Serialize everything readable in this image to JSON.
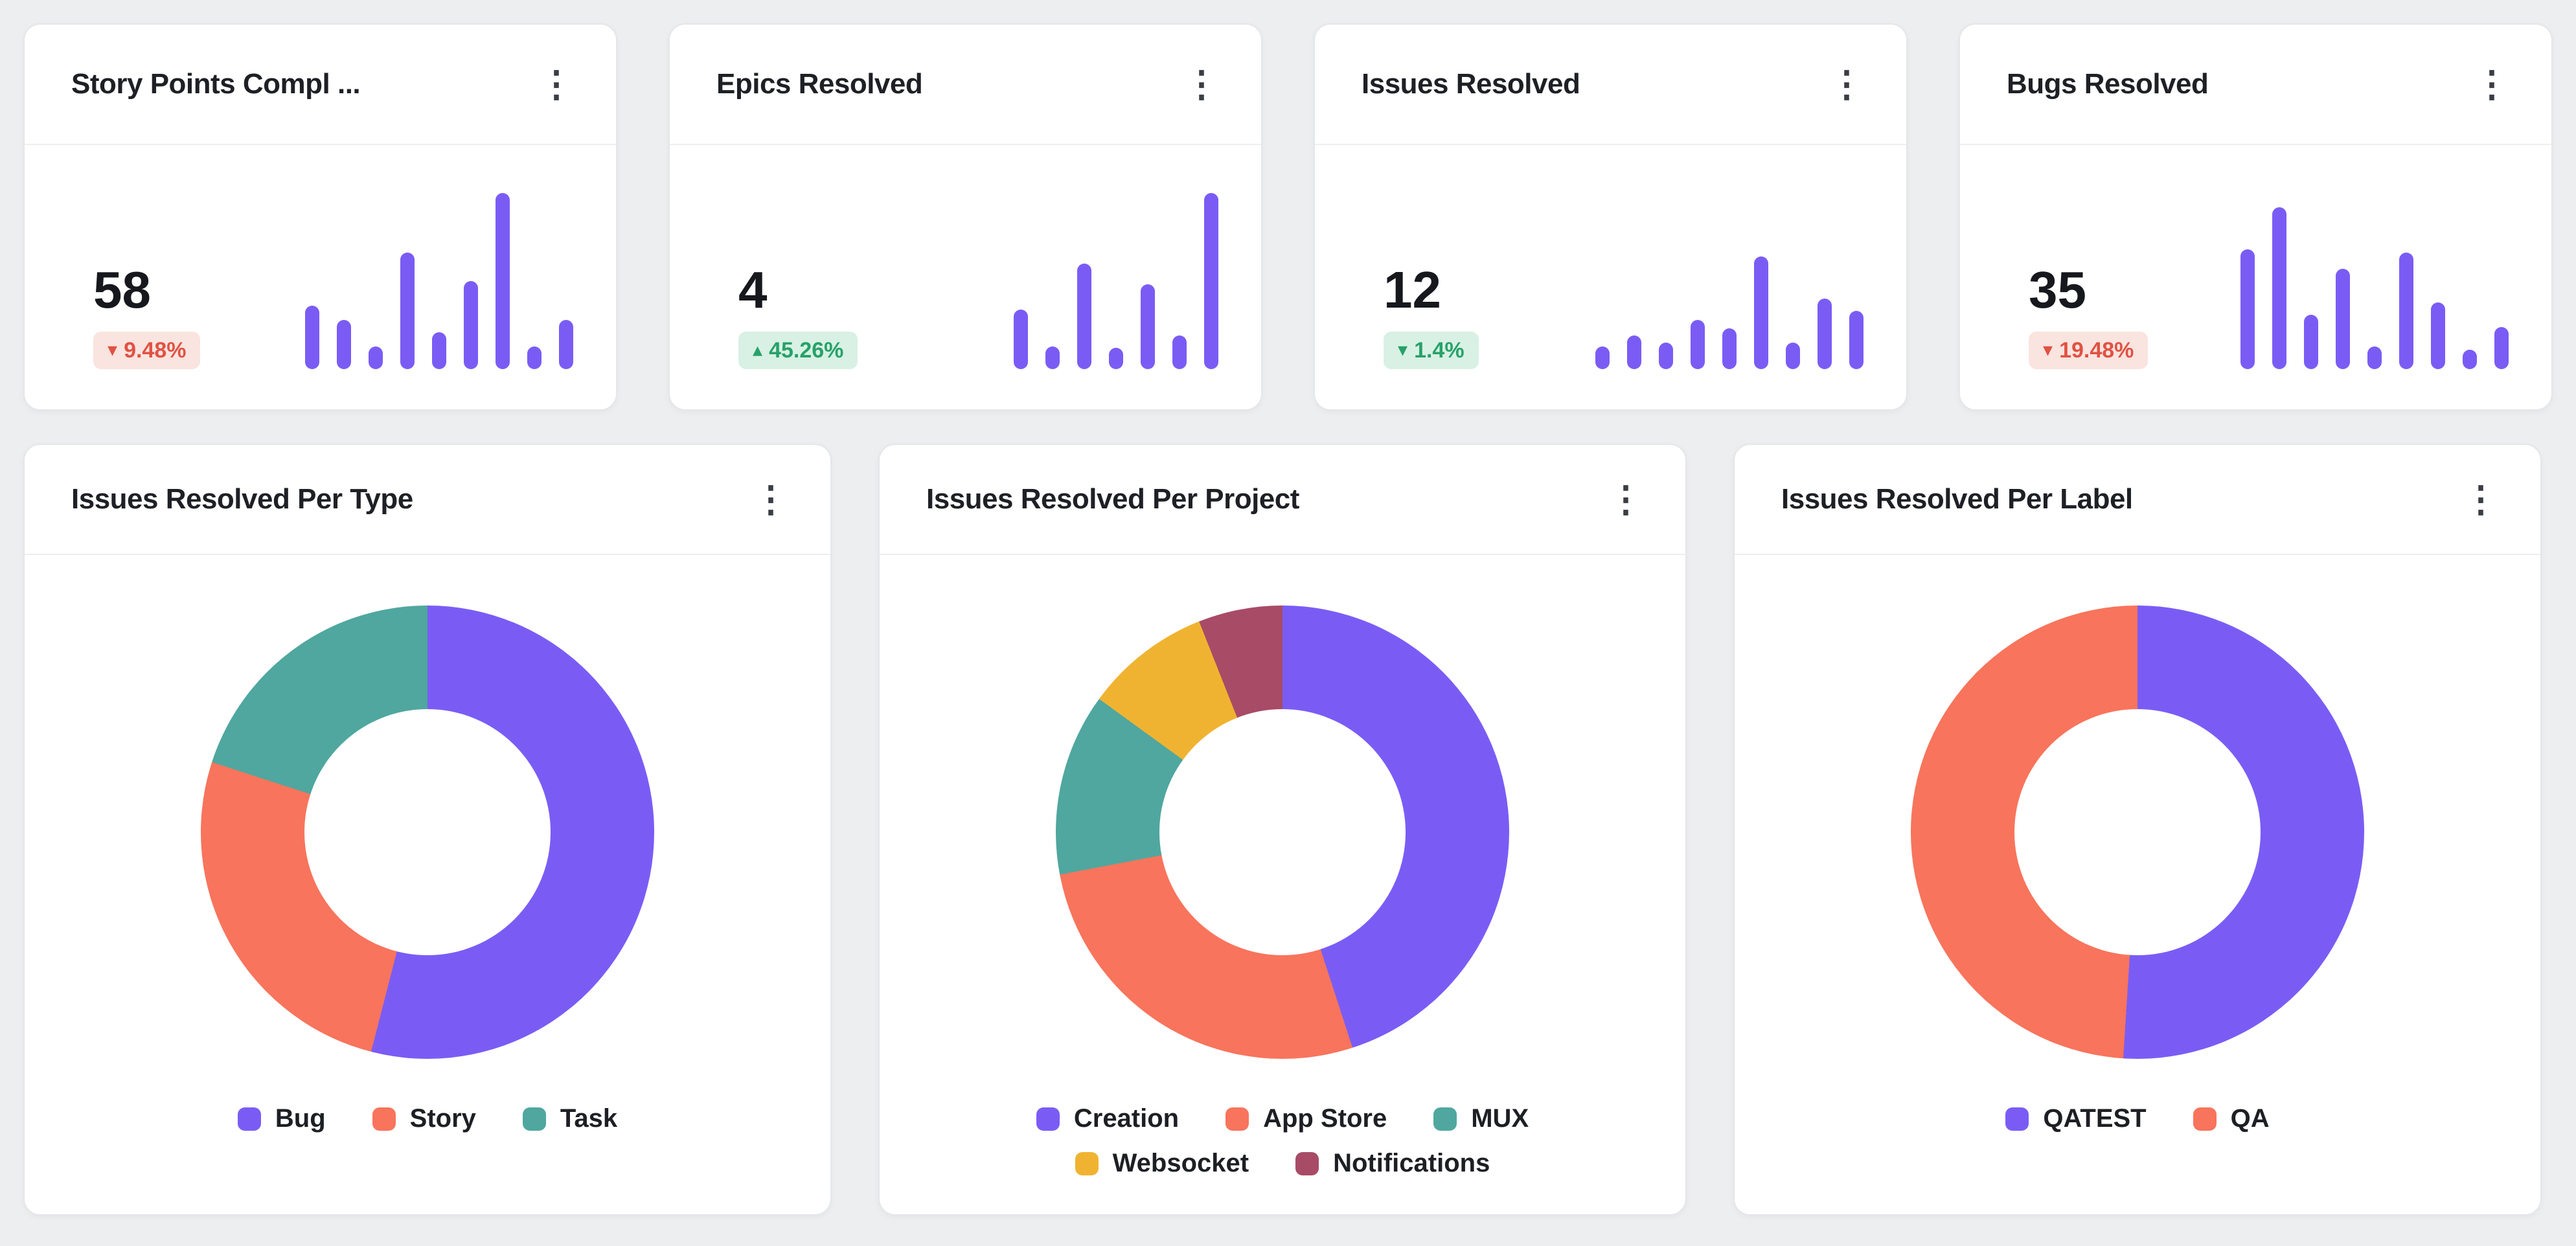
{
  "icons": {
    "kebab": "⋮",
    "arrow_up": "▴",
    "arrow_down": "▾"
  },
  "palette": {
    "page_bg": "#edeef0",
    "card_bg": "#ffffff",
    "card_border": "#e4e6e9",
    "title_text": "#1e2025",
    "value_text": "#17181d",
    "bar": "#7a5cf5",
    "badge_positive_bg": "#d8f1e4",
    "badge_positive_text": "#27a169",
    "badge_negative_bg": "#fae4e0",
    "badge_negative_text": "#e05243"
  },
  "chart_data": [
    {
      "kind": "kpi",
      "type": "bar",
      "title": "Story Points Compl ...",
      "metric": 58,
      "delta_label": "9.48%",
      "delta_direction": "down",
      "delta_sentiment": "negative",
      "unit": "relative-bar-height-percent",
      "values": [
        36,
        28,
        13,
        66,
        21,
        50,
        100,
        13,
        28
      ]
    },
    {
      "kind": "kpi",
      "type": "bar",
      "title": "Epics Resolved",
      "metric": 4,
      "delta_label": "45.26%",
      "delta_direction": "up",
      "delta_sentiment": "positive",
      "unit": "relative-bar-height-percent",
      "values": [
        34,
        13,
        60,
        12,
        48,
        19,
        100
      ]
    },
    {
      "kind": "kpi",
      "type": "bar",
      "title": "Issues Resolved",
      "metric": 12,
      "delta_label": "1.4%",
      "delta_direction": "down",
      "delta_sentiment": "positive",
      "unit": "relative-bar-height-percent",
      "values": [
        13,
        19,
        15,
        28,
        23,
        64,
        15,
        40,
        33
      ]
    },
    {
      "kind": "kpi",
      "type": "bar",
      "title": "Bugs Resolved",
      "metric": 35,
      "delta_label": "19.48%",
      "delta_direction": "down",
      "delta_sentiment": "negative",
      "unit": "relative-bar-height-percent",
      "values": [
        68,
        92,
        31,
        57,
        13,
        66,
        38,
        11,
        24
      ]
    },
    {
      "kind": "donut",
      "type": "pie",
      "title": "Issues Resolved Per Type",
      "unit": "percent-estimated-from-arc",
      "segments": [
        {
          "label": "Bug",
          "value": 54,
          "color": "#7a5cf5"
        },
        {
          "label": "Story",
          "value": 26,
          "color": "#f8745c"
        },
        {
          "label": "Task",
          "value": 20,
          "color": "#4fa79f"
        }
      ]
    },
    {
      "kind": "donut",
      "type": "pie",
      "title": "Issues Resolved Per Project",
      "unit": "percent-estimated-from-arc",
      "legend_per_row": 3,
      "segments": [
        {
          "label": "Creation",
          "value": 45,
          "color": "#7a5cf5"
        },
        {
          "label": "App Store",
          "value": 27,
          "color": "#f8745c"
        },
        {
          "label": "MUX",
          "value": 13,
          "color": "#4fa79f"
        },
        {
          "label": "Websocket",
          "value": 9,
          "color": "#f0b331"
        },
        {
          "label": "Notifications",
          "value": 6,
          "color": "#a84b66"
        }
      ]
    },
    {
      "kind": "donut",
      "type": "pie",
      "title": "Issues Resolved Per Label",
      "unit": "percent-estimated-from-arc",
      "segments": [
        {
          "label": "QATEST",
          "value": 51,
          "color": "#7a5cf5"
        },
        {
          "label": "QA",
          "value": 49,
          "color": "#f8745c"
        }
      ]
    }
  ]
}
